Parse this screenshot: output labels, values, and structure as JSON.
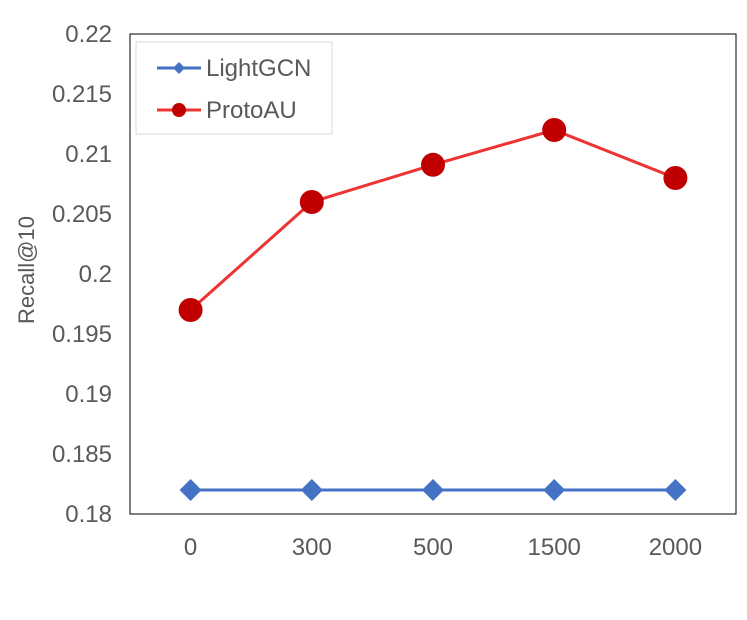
{
  "chart_data": {
    "type": "line",
    "categories": [
      "0",
      "300",
      "500",
      "1500",
      "2000"
    ],
    "series": [
      {
        "name": "LightGCN",
        "values": [
          0.182,
          0.182,
          0.182,
          0.182,
          0.182
        ],
        "color": "#4472C4",
        "marker": "diamond"
      },
      {
        "name": "ProtoAU",
        "values": [
          0.197,
          0.206,
          0.2091,
          0.212,
          0.208
        ],
        "color": "#EE3333",
        "marker_color": "#C00000",
        "marker": "circle"
      }
    ],
    "ylabel": "Recall@10",
    "xlabel": "",
    "ylim": [
      0.18,
      0.22
    ],
    "yticks": [
      "0.18",
      "0.185",
      "0.19",
      "0.195",
      "0.2",
      "0.205",
      "0.21",
      "0.215",
      "0.22"
    ],
    "grid": false,
    "legend_position": "top-left"
  }
}
